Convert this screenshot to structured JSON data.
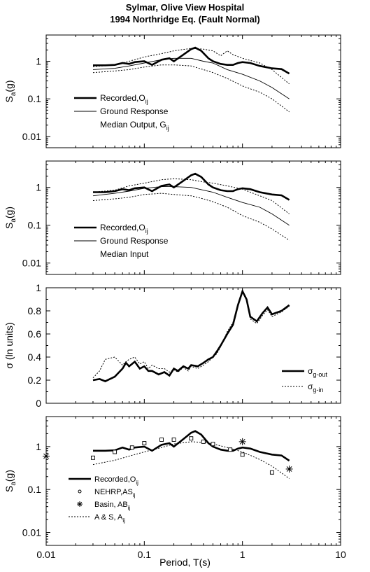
{
  "title_line1": "Sylmar, Olive View Hospital",
  "title_line2": "1994 Northridge Eq. (Fault Normal)",
  "xlabel": "Period, T(s)",
  "chart_data": [
    {
      "type": "line",
      "x_scale": "log",
      "y_scale": "log",
      "xlim": [
        0.01,
        10
      ],
      "ylim": [
        0.005,
        5
      ],
      "x_ticks": [
        "0.01",
        "0.1",
        "1",
        "10"
      ],
      "y_ticks": [
        "0.01",
        "0.1",
        "1"
      ],
      "ylabel": "Sa(g)",
      "legend": [
        {
          "label": "Recorded,O",
          "sub": "ij",
          "style": "thick"
        },
        {
          "label": "Ground Response",
          "style": "thin"
        },
        {
          "label": "Median Output, G",
          "sub": "ij",
          "style": "none"
        }
      ],
      "series": [
        {
          "name": "Recorded",
          "style": "thick",
          "x": [
            0.03,
            0.04,
            0.05,
            0.06,
            0.07,
            0.08,
            0.1,
            0.12,
            0.15,
            0.18,
            0.2,
            0.25,
            0.3,
            0.33,
            0.38,
            0.45,
            0.5,
            0.6,
            0.7,
            0.8,
            0.9,
            1.0,
            1.2,
            1.5,
            2.0,
            2.5,
            3.0
          ],
          "y": [
            0.78,
            0.78,
            0.8,
            0.9,
            0.85,
            0.95,
            1.0,
            0.8,
            1.1,
            1.2,
            1.0,
            1.5,
            2.1,
            2.3,
            1.9,
            1.2,
            1.0,
            0.85,
            0.8,
            0.8,
            0.9,
            0.95,
            0.9,
            0.75,
            0.65,
            0.62,
            0.47
          ]
        },
        {
          "name": "Median",
          "style": "thin",
          "x": [
            0.03,
            0.05,
            0.07,
            0.1,
            0.15,
            0.2,
            0.3,
            0.4,
            0.5,
            0.7,
            1.0,
            1.5,
            2.0,
            3.0
          ],
          "y": [
            0.6,
            0.65,
            0.75,
            0.9,
            1.1,
            1.2,
            1.2,
            1.0,
            0.9,
            0.6,
            0.45,
            0.3,
            0.2,
            0.1
          ]
        },
        {
          "name": "Upper",
          "style": "dotted",
          "x": [
            0.03,
            0.05,
            0.07,
            0.1,
            0.15,
            0.2,
            0.3,
            0.4,
            0.5,
            0.6,
            0.7,
            0.8,
            1.0,
            1.5,
            2.0,
            3.0
          ],
          "y": [
            0.72,
            0.8,
            1.0,
            1.3,
            1.6,
            1.9,
            2.2,
            2.1,
            1.9,
            1.4,
            1.9,
            1.5,
            1.2,
            0.9,
            0.6,
            0.25
          ]
        },
        {
          "name": "Lower",
          "style": "dotted",
          "x": [
            0.03,
            0.05,
            0.07,
            0.1,
            0.15,
            0.2,
            0.3,
            0.4,
            0.5,
            0.7,
            1.0,
            1.5,
            2.0,
            3.0
          ],
          "y": [
            0.5,
            0.55,
            0.6,
            0.7,
            0.8,
            0.8,
            0.75,
            0.6,
            0.5,
            0.35,
            0.22,
            0.15,
            0.1,
            0.045
          ]
        }
      ]
    },
    {
      "type": "line",
      "x_scale": "log",
      "y_scale": "log",
      "xlim": [
        0.01,
        10
      ],
      "ylim": [
        0.005,
        5
      ],
      "x_ticks": [
        "0.01",
        "0.1",
        "1",
        "10"
      ],
      "y_ticks": [
        "0.01",
        "0.1",
        "1"
      ],
      "ylabel": "Sa(g)",
      "legend": [
        {
          "label": "Recorded,O",
          "sub": "ij",
          "style": "thick"
        },
        {
          "label": "Ground Response",
          "style": "thin"
        },
        {
          "label": "Median Input",
          "style": "none"
        }
      ],
      "series": [
        {
          "name": "Recorded",
          "style": "thick",
          "x": [
            0.03,
            0.04,
            0.05,
            0.06,
            0.07,
            0.08,
            0.1,
            0.12,
            0.15,
            0.18,
            0.2,
            0.25,
            0.3,
            0.33,
            0.38,
            0.45,
            0.5,
            0.6,
            0.7,
            0.8,
            0.9,
            1.0,
            1.2,
            1.5,
            2.0,
            2.5,
            3.0
          ],
          "y": [
            0.75,
            0.75,
            0.8,
            0.9,
            0.85,
            0.95,
            1.0,
            0.8,
            1.1,
            1.2,
            1.0,
            1.5,
            2.1,
            2.3,
            1.9,
            1.2,
            1.0,
            0.85,
            0.8,
            0.8,
            0.9,
            0.95,
            0.9,
            0.75,
            0.65,
            0.62,
            0.47
          ]
        },
        {
          "name": "Median",
          "style": "thin",
          "x": [
            0.03,
            0.05,
            0.07,
            0.1,
            0.15,
            0.2,
            0.3,
            0.4,
            0.5,
            0.7,
            1.0,
            1.5,
            2.0,
            3.0
          ],
          "y": [
            0.6,
            0.7,
            0.8,
            0.95,
            1.05,
            1.05,
            1.0,
            0.85,
            0.75,
            0.55,
            0.4,
            0.3,
            0.2,
            0.1
          ]
        },
        {
          "name": "Upper",
          "style": "dotted",
          "x": [
            0.03,
            0.05,
            0.07,
            0.1,
            0.15,
            0.2,
            0.3,
            0.4,
            0.5,
            0.7,
            1.0,
            1.5,
            2.0,
            3.0
          ],
          "y": [
            0.75,
            0.85,
            1.1,
            1.3,
            1.6,
            1.7,
            1.6,
            1.4,
            1.3,
            1.1,
            0.9,
            0.6,
            0.45,
            0.2
          ]
        },
        {
          "name": "Lower",
          "style": "dotted",
          "x": [
            0.03,
            0.05,
            0.07,
            0.1,
            0.15,
            0.2,
            0.3,
            0.4,
            0.5,
            0.7,
            1.0,
            1.5,
            2.0,
            3.0
          ],
          "y": [
            0.45,
            0.5,
            0.55,
            0.65,
            0.7,
            0.65,
            0.6,
            0.5,
            0.42,
            0.3,
            0.18,
            0.12,
            0.08,
            0.04
          ]
        }
      ]
    },
    {
      "type": "line",
      "x_scale": "log",
      "y_scale": "linear",
      "xlim": [
        0.01,
        10
      ],
      "ylim": [
        0,
        1
      ],
      "x_ticks": [
        "0.01",
        "0.1",
        "1",
        "10"
      ],
      "y_ticks": [
        "0",
        "0.2",
        "0.4",
        "0.6",
        "0.8",
        "1"
      ],
      "ylabel": "σ (ln units)",
      "legend": [
        {
          "label": "σ",
          "sub": "g-out",
          "style": "thick"
        },
        {
          "label": "σ",
          "sub": "g-in",
          "style": "dotted"
        }
      ],
      "series": [
        {
          "name": "σg-out",
          "style": "thick",
          "x": [
            0.03,
            0.035,
            0.04,
            0.05,
            0.06,
            0.065,
            0.07,
            0.08,
            0.09,
            0.1,
            0.11,
            0.12,
            0.14,
            0.16,
            0.18,
            0.2,
            0.22,
            0.25,
            0.28,
            0.3,
            0.35,
            0.4,
            0.45,
            0.5,
            0.55,
            0.6,
            0.7,
            0.8,
            0.9,
            1.0,
            1.1,
            1.2,
            1.4,
            1.6,
            1.8,
            2.0,
            2.5,
            3.0
          ],
          "y": [
            0.2,
            0.21,
            0.19,
            0.23,
            0.3,
            0.35,
            0.32,
            0.36,
            0.3,
            0.32,
            0.28,
            0.28,
            0.25,
            0.27,
            0.24,
            0.3,
            0.28,
            0.32,
            0.3,
            0.33,
            0.32,
            0.35,
            0.38,
            0.4,
            0.45,
            0.5,
            0.6,
            0.68,
            0.85,
            0.97,
            0.9,
            0.75,
            0.71,
            0.78,
            0.83,
            0.77,
            0.8,
            0.85
          ]
        },
        {
          "name": "σg-in",
          "style": "dotted",
          "x": [
            0.03,
            0.035,
            0.04,
            0.05,
            0.06,
            0.065,
            0.07,
            0.08,
            0.09,
            0.1,
            0.11,
            0.12,
            0.14,
            0.16,
            0.18,
            0.2,
            0.22,
            0.25,
            0.28,
            0.3,
            0.35,
            0.4,
            0.45,
            0.5,
            0.55,
            0.6,
            0.7,
            0.8,
            0.9,
            1.0,
            1.1,
            1.2,
            1.4,
            1.6,
            1.8,
            2.0,
            2.5,
            3.0
          ],
          "y": [
            0.22,
            0.28,
            0.38,
            0.4,
            0.33,
            0.36,
            0.38,
            0.4,
            0.34,
            0.36,
            0.3,
            0.33,
            0.3,
            0.3,
            0.27,
            0.29,
            0.27,
            0.31,
            0.28,
            0.32,
            0.3,
            0.33,
            0.36,
            0.4,
            0.43,
            0.49,
            0.62,
            0.7,
            0.86,
            0.98,
            0.9,
            0.73,
            0.69,
            0.76,
            0.81,
            0.75,
            0.79,
            0.84
          ]
        }
      ]
    },
    {
      "type": "line",
      "x_scale": "log",
      "y_scale": "log",
      "xlim": [
        0.01,
        10
      ],
      "ylim": [
        0.005,
        5
      ],
      "x_ticks": [
        "0.01",
        "0.1",
        "1",
        "10"
      ],
      "y_ticks": [
        "0.01",
        "0.1",
        "1"
      ],
      "ylabel": "Sa(g)",
      "legend": [
        {
          "label": "Recorded,O",
          "sub": "ij",
          "style": "thick"
        },
        {
          "label": "NEHRP,AS",
          "sub": "ij",
          "style": "square"
        },
        {
          "label": "Basin, AB",
          "sub": "ij",
          "style": "star"
        },
        {
          "label": "A & S, A",
          "sub": "ij",
          "style": "dotted"
        }
      ],
      "series": [
        {
          "name": "Recorded",
          "style": "thick",
          "x": [
            0.03,
            0.04,
            0.05,
            0.06,
            0.07,
            0.08,
            0.1,
            0.12,
            0.15,
            0.18,
            0.2,
            0.25,
            0.3,
            0.33,
            0.38,
            0.45,
            0.5,
            0.6,
            0.7,
            0.8,
            0.9,
            1.0,
            1.2,
            1.5,
            2.0,
            2.5,
            3.0
          ],
          "y": [
            0.8,
            0.8,
            0.82,
            0.95,
            0.85,
            0.95,
            1.0,
            0.8,
            1.1,
            1.2,
            1.0,
            1.5,
            2.1,
            2.3,
            1.9,
            1.2,
            1.0,
            0.85,
            0.8,
            0.8,
            0.9,
            0.95,
            0.9,
            0.75,
            0.65,
            0.62,
            0.47
          ]
        },
        {
          "name": "A & S",
          "style": "dotted",
          "x": [
            0.03,
            0.05,
            0.07,
            0.1,
            0.15,
            0.2,
            0.3,
            0.4,
            0.5,
            0.7,
            1.0,
            1.5,
            2.0,
            3.0
          ],
          "y": [
            0.38,
            0.48,
            0.6,
            0.75,
            0.95,
            1.15,
            1.3,
            1.25,
            1.15,
            0.95,
            0.75,
            0.5,
            0.35,
            0.18
          ]
        },
        {
          "name": "NEHRP",
          "style": "square",
          "x": [
            0.03,
            0.05,
            0.075,
            0.1,
            0.15,
            0.2,
            0.3,
            0.4,
            0.5,
            0.75,
            1.0,
            2.0
          ],
          "y": [
            0.55,
            0.75,
            0.95,
            1.2,
            1.45,
            1.45,
            1.55,
            1.3,
            1.15,
            0.85,
            0.65,
            0.25
          ]
        },
        {
          "name": "Basin",
          "style": "star",
          "x": [
            0.01,
            1.0,
            3.0
          ],
          "y": [
            0.6,
            1.3,
            0.3
          ]
        }
      ]
    }
  ]
}
